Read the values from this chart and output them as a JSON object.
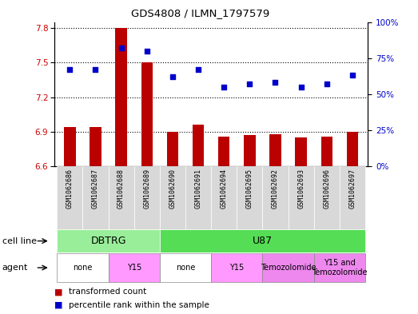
{
  "title": "GDS4808 / ILMN_1797579",
  "samples": [
    "GSM1062686",
    "GSM1062687",
    "GSM1062688",
    "GSM1062689",
    "GSM1062690",
    "GSM1062691",
    "GSM1062694",
    "GSM1062695",
    "GSM1062692",
    "GSM1062693",
    "GSM1062696",
    "GSM1062697"
  ],
  "bar_values": [
    6.94,
    6.94,
    7.8,
    7.5,
    6.9,
    6.96,
    6.86,
    6.87,
    6.88,
    6.85,
    6.86,
    6.9
  ],
  "bar_base": 6.6,
  "scatter_values": [
    67,
    67,
    82,
    80,
    62,
    67,
    55,
    57,
    58,
    55,
    57,
    63
  ],
  "ylim_left": [
    6.6,
    7.85
  ],
  "ylim_right": [
    0,
    100
  ],
  "yticks_left": [
    6.6,
    6.9,
    7.2,
    7.5,
    7.8
  ],
  "yticks_right": [
    0,
    25,
    50,
    75,
    100
  ],
  "ytick_labels_right": [
    "0%",
    "25%",
    "50%",
    "75%",
    "100%"
  ],
  "bar_color": "#bb0000",
  "scatter_color": "#0000cc",
  "cell_line_groups": [
    {
      "label": "DBTRG",
      "start": 0,
      "end": 3,
      "color": "#99ee99"
    },
    {
      "label": "U87",
      "start": 4,
      "end": 11,
      "color": "#55dd55"
    }
  ],
  "agent_groups": [
    {
      "label": "none",
      "start": 0,
      "end": 1,
      "color": "#ffffff"
    },
    {
      "label": "Y15",
      "start": 2,
      "end": 3,
      "color": "#ff99ff"
    },
    {
      "label": "none",
      "start": 4,
      "end": 5,
      "color": "#ffffff"
    },
    {
      "label": "Y15",
      "start": 6,
      "end": 7,
      "color": "#ff99ff"
    },
    {
      "label": "Temozolomide",
      "start": 8,
      "end": 9,
      "color": "#ee88ee"
    },
    {
      "label": "Y15 and\nTemozolomide",
      "start": 10,
      "end": 11,
      "color": "#ee88ee"
    }
  ],
  "legend_items": [
    "transformed count",
    "percentile rank within the sample"
  ],
  "tick_label_color_left": "#cc0000",
  "tick_label_color_right": "#0000cc"
}
